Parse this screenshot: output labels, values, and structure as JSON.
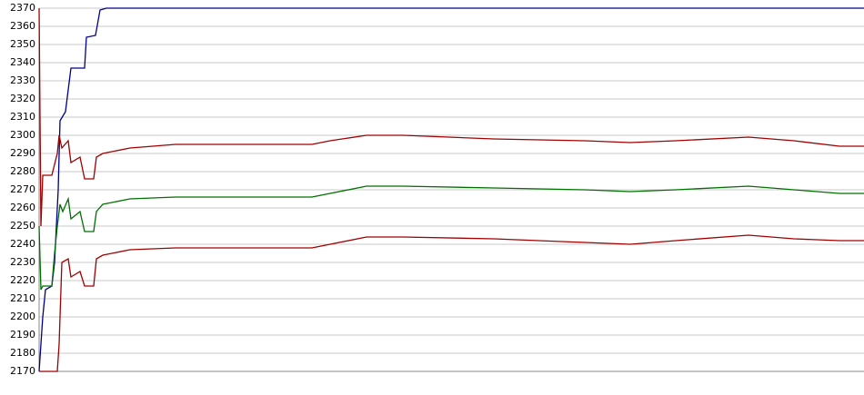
{
  "chart_data": {
    "type": "line",
    "xlim": [
      0,
      907
    ],
    "ylim": [
      2170,
      2370
    ],
    "yticks": [
      2170,
      2180,
      2190,
      2200,
      2210,
      2220,
      2230,
      2240,
      2250,
      2260,
      2270,
      2280,
      2290,
      2300,
      2310,
      2320,
      2330,
      2340,
      2350,
      2360,
      2370
    ],
    "grid": true,
    "series": [
      {
        "color": "#00008b",
        "x": [
          0,
          4,
          7,
          14,
          17,
          21,
          23,
          29,
          35,
          50,
          52,
          62,
          67,
          74,
          907
        ],
        "values": [
          2170,
          2200,
          2215,
          2217,
          2230,
          2270,
          2308,
          2313,
          2337,
          2337,
          2354,
          2355,
          2369,
          2370,
          2370
        ]
      },
      {
        "color": "#a00000",
        "x": [
          0,
          2,
          4,
          14,
          17,
          20,
          22,
          25,
          32,
          35,
          45,
          50,
          60,
          63,
          70,
          100,
          150,
          300,
          320,
          360,
          400,
          500,
          600,
          650,
          700,
          780,
          830,
          880,
          907
        ],
        "values": [
          2370,
          2250,
          2278,
          2278,
          2284,
          2290,
          2300,
          2293,
          2297,
          2285,
          2288,
          2276,
          2276,
          2288,
          2290,
          2293,
          2295,
          2295,
          2297,
          2300,
          2300,
          2298,
          2297,
          2296,
          2297,
          2299,
          2297,
          2294,
          2294
        ]
      },
      {
        "color": "#007000",
        "x": [
          0,
          2,
          4,
          14,
          17,
          20,
          23,
          26,
          32,
          35,
          45,
          50,
          60,
          63,
          70,
          100,
          150,
          300,
          320,
          360,
          400,
          500,
          600,
          650,
          700,
          780,
          830,
          880,
          907
        ],
        "values": [
          2250,
          2215,
          2217,
          2217,
          2235,
          2250,
          2262,
          2258,
          2265,
          2254,
          2258,
          2247,
          2247,
          2258,
          2262,
          2265,
          2266,
          2266,
          2268,
          2272,
          2272,
          2271,
          2270,
          2269,
          2270,
          2272,
          2270,
          2268,
          2268
        ]
      },
      {
        "color": "#a00000",
        "x": [
          0,
          20,
          22,
          25,
          32,
          35,
          45,
          50,
          60,
          63,
          70,
          100,
          150,
          300,
          320,
          360,
          400,
          500,
          600,
          650,
          700,
          780,
          830,
          880,
          907
        ],
        "values": [
          2170,
          2170,
          2185,
          2230,
          2232,
          2222,
          2225,
          2217,
          2217,
          2232,
          2234,
          2237,
          2238,
          2238,
          2240,
          2244,
          2244,
          2243,
          2241,
          2240,
          2242,
          2245,
          2243,
          2242,
          2242
        ]
      }
    ]
  }
}
